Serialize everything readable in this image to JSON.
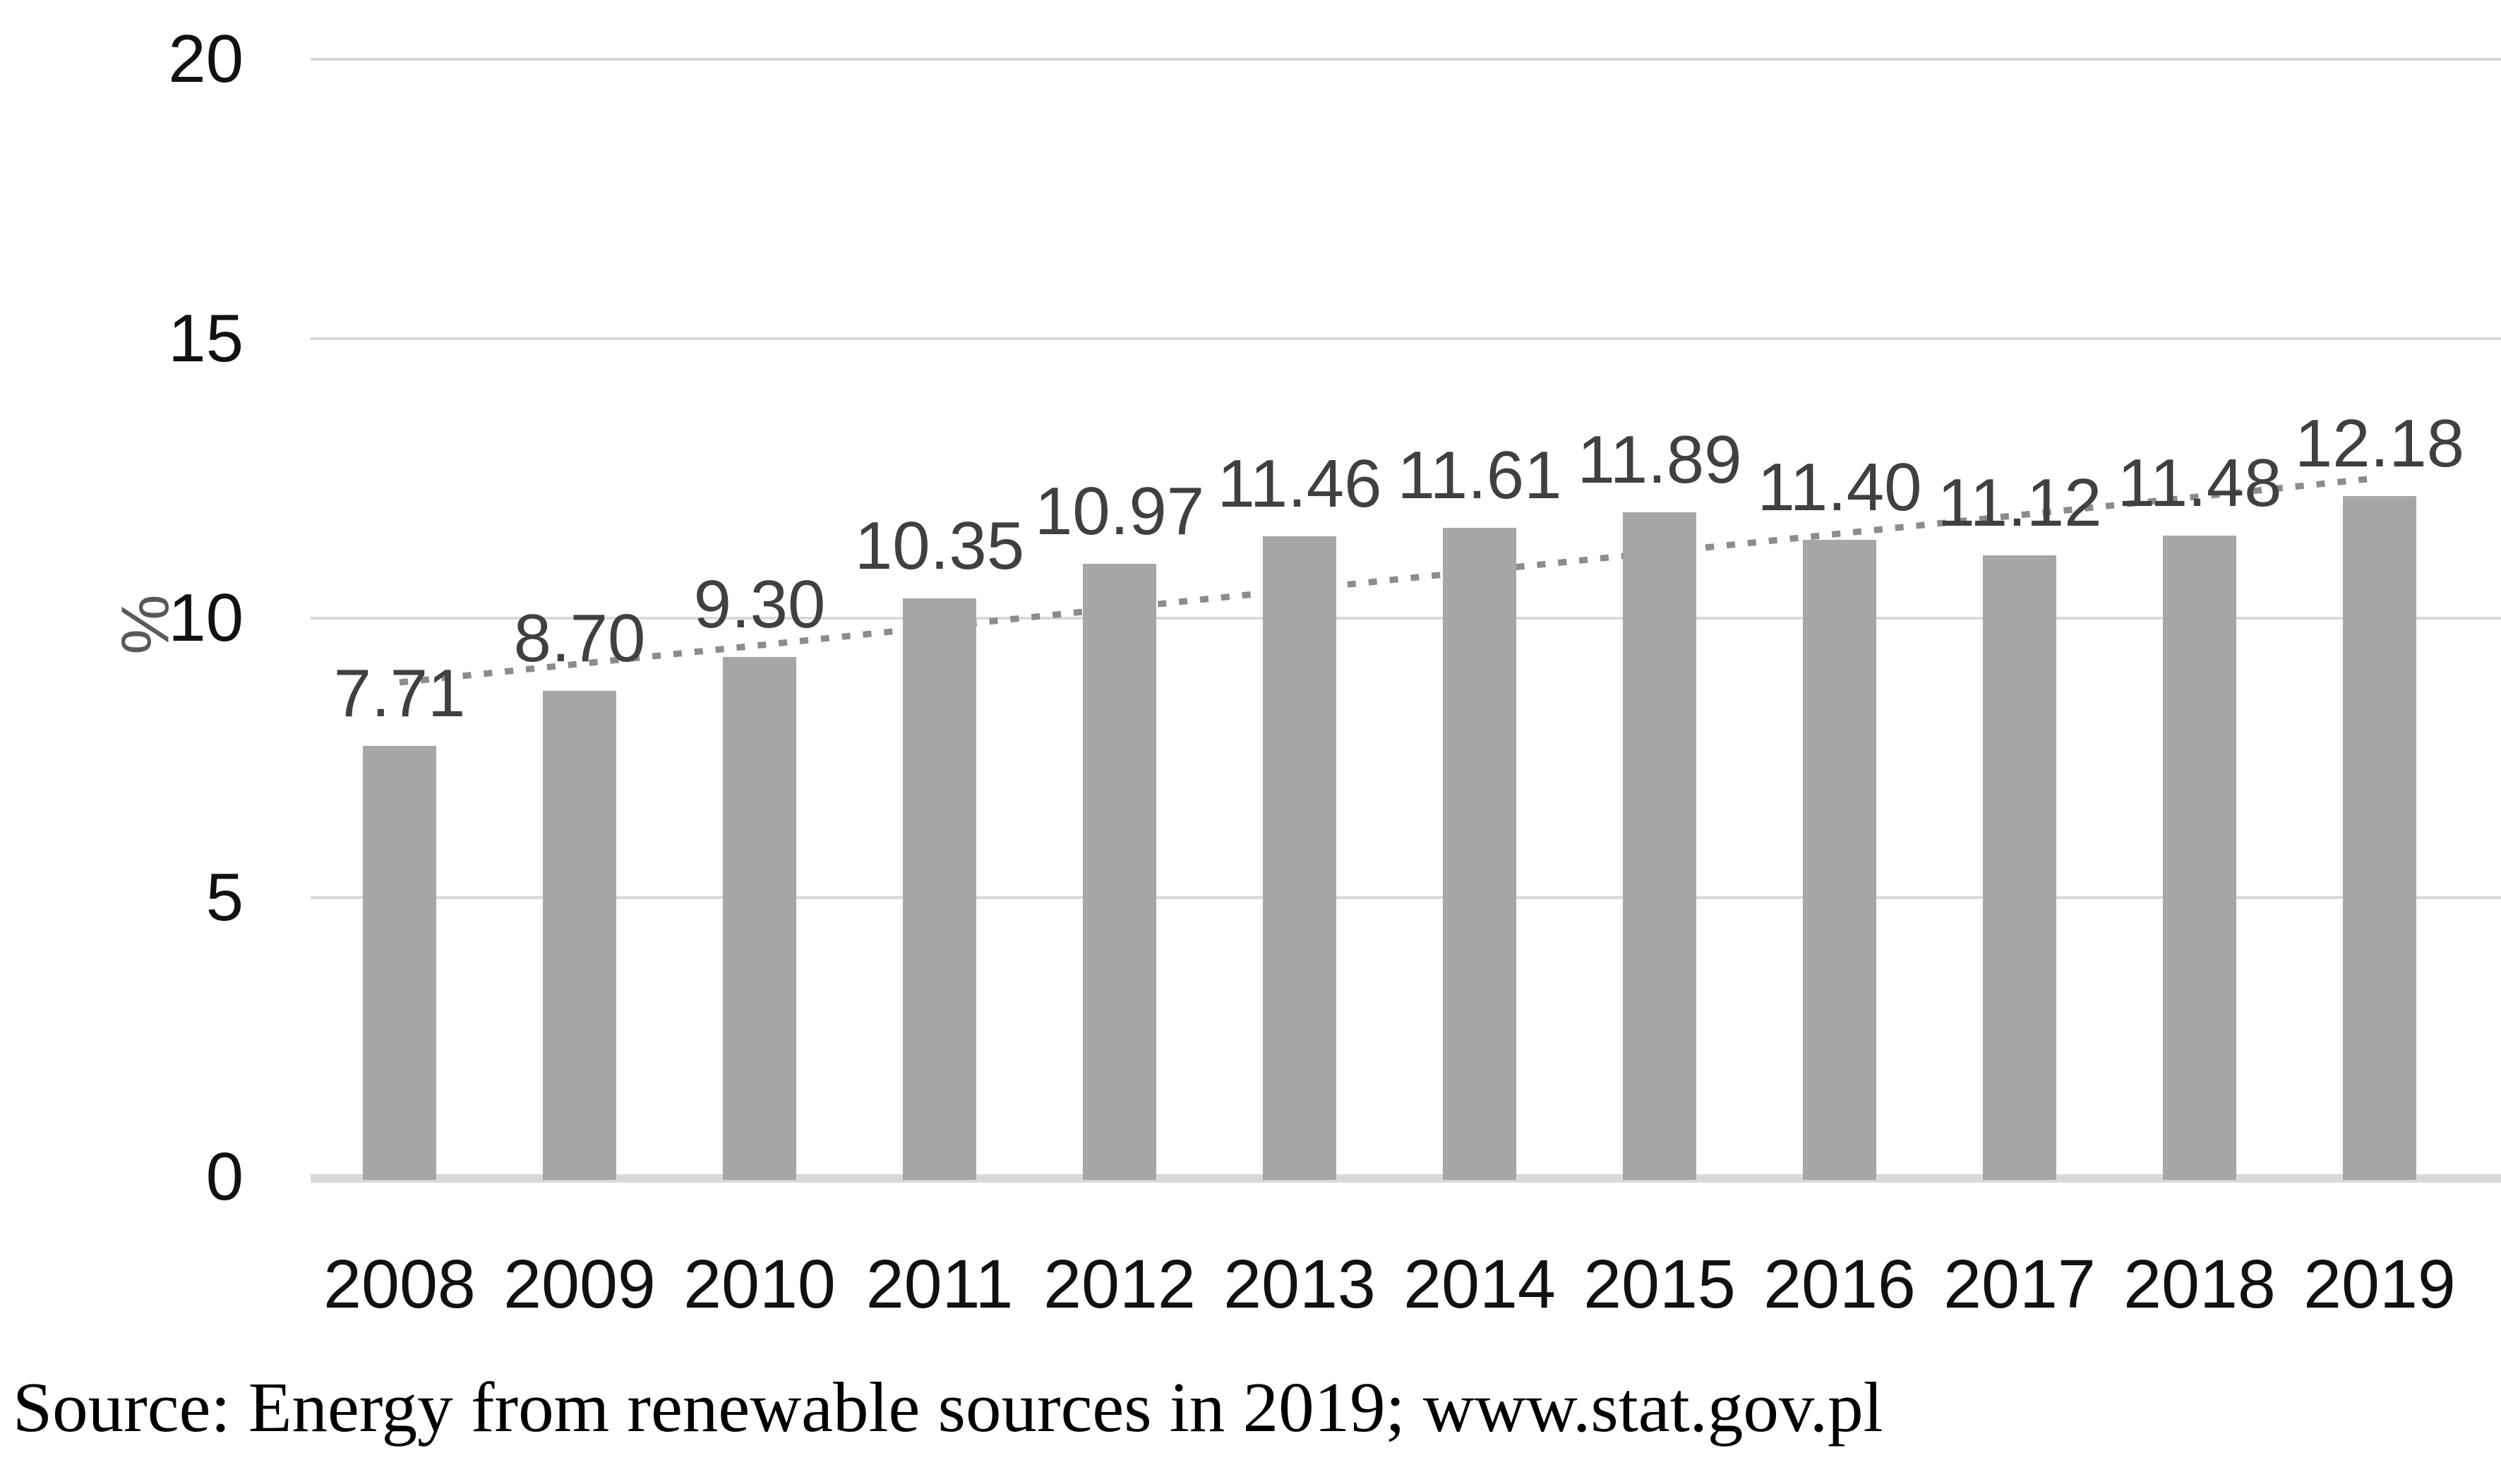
{
  "chart_data": {
    "type": "bar",
    "title": "",
    "categories": [
      "2008",
      "2009",
      "2010",
      "2011",
      "2012",
      "2013",
      "2014",
      "2015",
      "2016",
      "2017",
      "2018",
      "2019"
    ],
    "values": [
      7.71,
      8.7,
      9.3,
      10.35,
      10.97,
      11.46,
      11.61,
      11.89,
      11.4,
      11.12,
      11.48,
      12.18
    ],
    "value_labels": [
      "7.71",
      "8.70",
      "9.30",
      "10.35",
      "10.97",
      "11.46",
      "11.61",
      "11.89",
      "11.40",
      "11.12",
      "11.48",
      "12.18"
    ],
    "xlabel": "",
    "ylabel": "%",
    "ylim": [
      0,
      20
    ],
    "yticks": [
      "0",
      "5",
      "10",
      "15",
      "20"
    ],
    "ytick_values": [
      0,
      5,
      10,
      15,
      20
    ],
    "grid": true,
    "legend": "none",
    "bar_color": "#a6a6a6",
    "grid_color": "#d9d9d9",
    "value_label_color": "#404040",
    "axis_text_color": "#111111",
    "ylabel_color": "#595959",
    "trendline": {
      "type": "linear",
      "style": "dotted",
      "color": "#8c8c8c",
      "start_value": 8.85,
      "end_value": 12.51
    }
  },
  "caption": {
    "text": "Source: Energy from renewable sources in 2019; www.stat.gov.pl"
  }
}
